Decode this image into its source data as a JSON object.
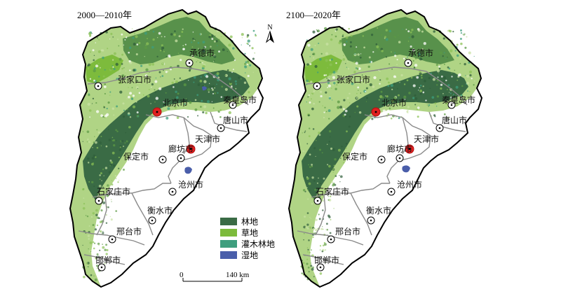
{
  "panels": [
    {
      "title": "2000—2010年",
      "cities": [
        {
          "name": "承德市",
          "kind": "city"
        },
        {
          "name": "张家口市",
          "kind": "city"
        },
        {
          "name": "北京市",
          "kind": "capital"
        },
        {
          "name": "秦皇岛市",
          "kind": "city"
        },
        {
          "name": "唐山市",
          "kind": "city"
        },
        {
          "name": "天津市",
          "kind": "capital"
        },
        {
          "name": "廊坊市",
          "kind": "city"
        },
        {
          "name": "保定市",
          "kind": "city"
        },
        {
          "name": "沧州市",
          "kind": "city"
        },
        {
          "name": "石家庄市",
          "kind": "city"
        },
        {
          "name": "衡水市",
          "kind": "city"
        },
        {
          "name": "邢台市",
          "kind": "city"
        },
        {
          "name": "邯郸市",
          "kind": "city"
        }
      ]
    },
    {
      "title": "2100—2020年",
      "cities": [
        {
          "name": "承德市",
          "kind": "city"
        },
        {
          "name": "张家口市",
          "kind": "city"
        },
        {
          "name": "北京市",
          "kind": "capital"
        },
        {
          "name": "秦皇岛市",
          "kind": "city"
        },
        {
          "name": "唐山市",
          "kind": "city"
        },
        {
          "name": "天津市",
          "kind": "capital"
        },
        {
          "name": "廊坊市",
          "kind": "city"
        },
        {
          "name": "保定市",
          "kind": "city"
        },
        {
          "name": "沧州市",
          "kind": "city"
        },
        {
          "name": "石家庄市",
          "kind": "city"
        },
        {
          "name": "衡水市",
          "kind": "city"
        },
        {
          "name": "邢台市",
          "kind": "city"
        },
        {
          "name": "邯郸市",
          "kind": "city"
        }
      ]
    }
  ],
  "legend": [
    {
      "label": "林地",
      "color": "#3a6b45"
    },
    {
      "label": "草地",
      "color": "#7dbb3c"
    },
    {
      "label": "灌木林地",
      "color": "#3e9e7e"
    },
    {
      "label": "湿地",
      "color": "#4a5eaa"
    }
  ],
  "scale_bar": {
    "start": "0",
    "end": "140 km"
  },
  "north_arrow": {
    "label": "N",
    "icon": "north-arrow-icon"
  },
  "colors": {
    "forest": "#3a6b45",
    "grassland": "#7dbb3c",
    "shrub": "#3e9e7e",
    "wetland": "#4a5eaa",
    "outer_boundary": "#000000",
    "inner_boundary": "#8a8a8a",
    "capital_marker": "#e02020"
  }
}
